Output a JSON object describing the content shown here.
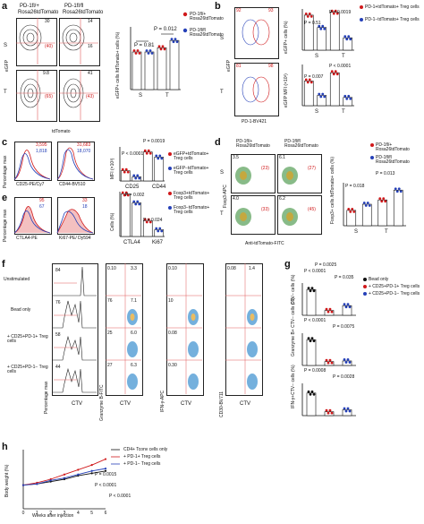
{
  "panels": {
    "a": {
      "letter": "a",
      "header_left": "PD-1fl/+",
      "header_left_sub": "Rosa26tdTomato",
      "header_right": "PD-1fl/fl",
      "header_right_sub": "Rosa26tdTomato",
      "row_labels": [
        "S",
        "T"
      ],
      "x_axis": "tdTomato",
      "y_axis": "eGFP",
      "quad_values": [
        [
          "30",
          "(40)",
          "14",
          "16"
        ],
        [
          "9.8",
          "(65)",
          "41",
          "(43)"
        ]
      ],
      "bar_ylabel": "eGFP+ cells /tdTomato+ cells (%)",
      "p_values": [
        "P = 0.81",
        "P = 0.012"
      ],
      "categories": [
        "S",
        "T"
      ],
      "legend": [
        "PD-1fl/+ Rosa26tdTomato",
        "PD-1fl/fl Rosa26tdTomato"
      ]
    },
    "b": {
      "letter": "b",
      "row_labels": [
        "S",
        "T"
      ],
      "x_axis": "PD-1-BV421",
      "y_axis": "eGFP",
      "quad_values": [
        "92",
        "93",
        "81",
        "98"
      ],
      "bar1_ylabel": "eGFP+ cells (%)",
      "bar2_ylabel": "eGFP MFI (×10³)",
      "p_values": [
        "P = 0.0019",
        "P = 0.51",
        "P < 0.0001",
        "P = 0.007"
      ],
      "categories": [
        "S",
        "T"
      ],
      "legend": [
        "PD-1+tdTomato+ Treg cells",
        "PD-1−tdTomato+ Treg cells"
      ]
    },
    "c": {
      "letter": "c",
      "values_cd25": [
        "3,595",
        "1,818"
      ],
      "values_cd44": [
        "31,683",
        "18,070"
      ],
      "x_axis_1": "CD25-PE/Cy7",
      "x_axis_2": "CD44-BV510",
      "y_axis": "Percentage max",
      "bar_ylabel": "MFI (×10³)",
      "p_values": [
        "P = 0.0019",
        "P < 0.0001"
      ],
      "categories": [
        "CD25",
        "CD44"
      ],
      "legend": [
        "eGFP+tdTomato+ Treg cells",
        "eGFP−tdTomato+ Treg cells"
      ]
    },
    "d": {
      "letter": "d",
      "header_left": "PD-1fl/+ Rosa26tdTomato",
      "header_right": "PD-1fl/fl Rosa26tdTomato",
      "row_labels": [
        "S",
        "T"
      ],
      "x_axis": "Anti-tdTomato-FITC",
      "y_axis": "Foxp3-APC",
      "quad_values": [
        "3.5",
        "(23)",
        "6.1",
        "(27)",
        "4.0",
        "(33)",
        "6.2",
        "(45)"
      ],
      "bar_ylabel": "Foxp3+ cells /tdTomato+ cells (%)",
      "p_values": [
        "P = 0.018",
        "P = 0.013"
      ],
      "categories": [
        "S",
        "T"
      ],
      "legend": [
        "PD-1fl/+ Rosa26tdTomato",
        "PD-1fl/fl Rosa26tdTomato"
      ]
    },
    "e": {
      "letter": "e",
      "values_ctla4": [
        "95",
        "67"
      ],
      "values_ki67": [
        "33",
        "18"
      ],
      "x_axis_1": "CTLA4-PE",
      "x_axis_2": "Ki67-PE/ Dy594",
      "y_axis": "Percentage max",
      "bar_ylabel": "Cells (%)",
      "p_values": [
        "P = 0.002",
        "P = 0.024"
      ],
      "categories": [
        "CTLA4",
        "Ki67"
      ],
      "legend": [
        "Foxp3+tdTomato+ Treg cells",
        "Foxp3−tdTomato+ Treg cells"
      ]
    },
    "f": {
      "letter": "f",
      "row_labels": [
        "Unstimulated",
        "Bead only",
        "+ CD25+PD-1+ Treg cells",
        "+ CD25+PD-1− Treg cells"
      ],
      "hist_values": [
        "84",
        "76",
        "58",
        "44"
      ],
      "gz_values": [
        [
          "0.10",
          "3.3",
          "",
          "6.0"
        ],
        [
          "76",
          "",
          ""
        ],
        [
          "25",
          "",
          "7.1"
        ],
        [
          "27",
          "",
          "6.3"
        ]
      ],
      "quad_top": [
        [
          "0.10",
          "3.3"
        ],
        [
          "0.06",
          "10"
        ],
        [
          "0.08",
          "1.4"
        ]
      ],
      "quad_col2": [
        "0.10",
        "10",
        "0.08",
        "0.30"
      ],
      "rows_left": [
        [
          "0.10",
          "3.3"
        ],
        [
          "76",
          "7.1"
        ],
        [
          "25",
          "6.0"
        ],
        [
          "27",
          "6.3"
        ]
      ],
      "x_axis": "CTV",
      "y_axes": [
        "Percentage max",
        "Granzyme B-FITC",
        "IFN-γ-APC",
        "CD30-BV711"
      ]
    },
    "g": {
      "letter": "g",
      "ylabels": [
        "CTV− cells (%)",
        "Granzyme B+ CTV− cells (%)",
        "IFN-γ+CTV− cells (%)"
      ],
      "p_values": [
        [
          "P = 0.0025",
          "P < 0.0001",
          "P = 0.035"
        ],
        [
          "P < 0.0001",
          "P = 0.0075"
        ],
        [
          "P = 0.0008",
          "P = 0.0028"
        ]
      ],
      "legend": [
        "Bead only",
        "+ CD25+PD-1+ Treg cells",
        "+ CD25+PD-1− Treg cells"
      ]
    },
    "h": {
      "letter": "h",
      "ylabel": "Body weight (%)",
      "xlabel": "Weeks after injection",
      "legend": [
        "CD4+ Tconv cells only",
        "+ PD-1+ Treg cells",
        "+ PD-1− Treg cells"
      ],
      "p_values": [
        "P = 0.0015",
        "P < 0.0001",
        "P < 0.0001"
      ]
    }
  },
  "chart_data": [
    {
      "type": "bar",
      "panel": "a",
      "categories": [
        "S",
        "T"
      ],
      "series": [
        {
          "name": "PD-1fl/+ Rosa26tdTomato",
          "values": [
            36,
            40
          ]
        },
        {
          "name": "PD-1fl/fl Rosa26tdTomato",
          "values": [
            36,
            47
          ]
        }
      ],
      "ylim": [
        0,
        60
      ]
    },
    {
      "type": "line",
      "panel": "h",
      "x": [
        0,
        1,
        2,
        3,
        4,
        5,
        6
      ],
      "series": [
        {
          "name": "CD4+ Tconv cells only",
          "values": [
            100,
            101,
            103,
            105,
            108,
            110,
            112
          ]
        },
        {
          "name": "+ PD-1+ Treg cells",
          "values": [
            100,
            102,
            105,
            109,
            113,
            117,
            122
          ]
        },
        {
          "name": "+ PD-1− Treg cells",
          "values": [
            100,
            101,
            104,
            106,
            109,
            112,
            114
          ]
        }
      ],
      "xlabel": "Weeks after injection",
      "ylabel": "Body weight (%)",
      "ylim": [
        80,
        130
      ]
    }
  ],
  "colors": {
    "red": "#d0191b",
    "blue": "#2540b8",
    "axis": "#111111",
    "quad_line": "#e05a5a"
  }
}
